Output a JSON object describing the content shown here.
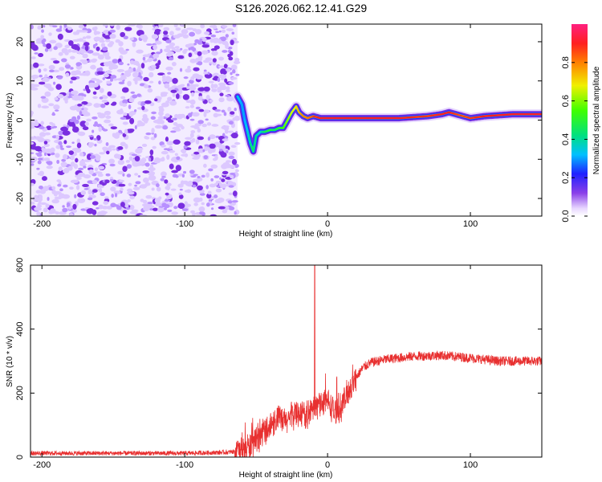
{
  "title": "S126.2026.062.12.41.G29",
  "chart_data": [
    {
      "type": "heatmap",
      "name": "spectrogram",
      "xlabel": "Height of straight line (km)",
      "ylabel": "Frequency (Hz)",
      "xlim": [
        -208,
        150
      ],
      "ylim": [
        -24.5,
        24.5
      ],
      "xticks": [
        -200,
        -100,
        0,
        100
      ],
      "yticks": [
        -20,
        -10,
        0,
        10,
        20
      ],
      "noise_region_x": [
        -208,
        -63
      ],
      "ridge": {
        "x": [
          -63,
          -60,
          -58,
          -56,
          -54,
          -52,
          -50,
          -47,
          -44,
          -40,
          -37,
          -34,
          -31,
          -28,
          -25,
          -22,
          -20,
          -17,
          -14,
          -10,
          -5,
          0,
          10,
          30,
          50,
          70,
          80,
          85,
          90,
          95,
          100,
          110,
          130,
          150
        ],
        "freq": [
          6,
          4,
          0,
          -3,
          -6,
          -8,
          -4,
          -3,
          -3,
          -2.5,
          -2.5,
          -2,
          -2,
          0,
          2,
          3.5,
          2,
          1,
          0.5,
          1,
          0.5,
          0.5,
          0.5,
          0.5,
          0.5,
          1,
          1.5,
          2,
          1.5,
          1,
          0.5,
          1,
          1.5,
          1.5
        ],
        "amp": [
          0.35,
          0.3,
          0.3,
          0.35,
          0.4,
          0.45,
          0.4,
          0.35,
          0.45,
          0.5,
          0.45,
          0.5,
          0.55,
          0.6,
          0.65,
          0.7,
          0.75,
          0.8,
          0.8,
          0.85,
          0.9,
          0.9,
          0.9,
          0.9,
          0.9,
          0.85,
          0.9,
          0.9,
          0.85,
          0.8,
          0.85,
          0.9,
          0.9,
          0.9
        ]
      }
    },
    {
      "type": "line",
      "name": "snr",
      "xlabel": "Height of straight line (km)",
      "ylabel": "SNR (10 * v/v)",
      "xlim": [
        -208,
        150
      ],
      "ylim": [
        0,
        600
      ],
      "xticks": [
        -200,
        -100,
        0,
        100
      ],
      "yticks": [
        0,
        200,
        400,
        600
      ],
      "color": "#e83030",
      "series": {
        "x": [
          -208,
          -150,
          -100,
          -70,
          -60,
          -50,
          -45,
          -40,
          -35,
          -30,
          -25,
          -20,
          -15,
          -10,
          -5,
          0,
          5,
          10,
          15,
          20,
          25,
          30,
          40,
          50,
          60,
          80,
          100,
          120,
          140,
          150
        ],
        "y": [
          12,
          12,
          12,
          15,
          20,
          45,
          80,
          100,
          120,
          110,
          130,
          140,
          130,
          150,
          170,
          175,
          140,
          160,
          210,
          250,
          280,
          295,
          305,
          310,
          315,
          318,
          310,
          300,
          300,
          300
        ]
      },
      "spike": {
        "x": -9,
        "y": 600
      }
    },
    {
      "type": "colorbar",
      "name": "amplitude-colorbar",
      "label": "Normalized spectral amplitude",
      "range": [
        0,
        1
      ],
      "ticks": [
        "0.0",
        "0.2",
        "0.4",
        "0.6",
        "0.8"
      ],
      "tick_values": [
        0.0,
        0.2,
        0.4,
        0.6,
        0.8
      ]
    }
  ]
}
